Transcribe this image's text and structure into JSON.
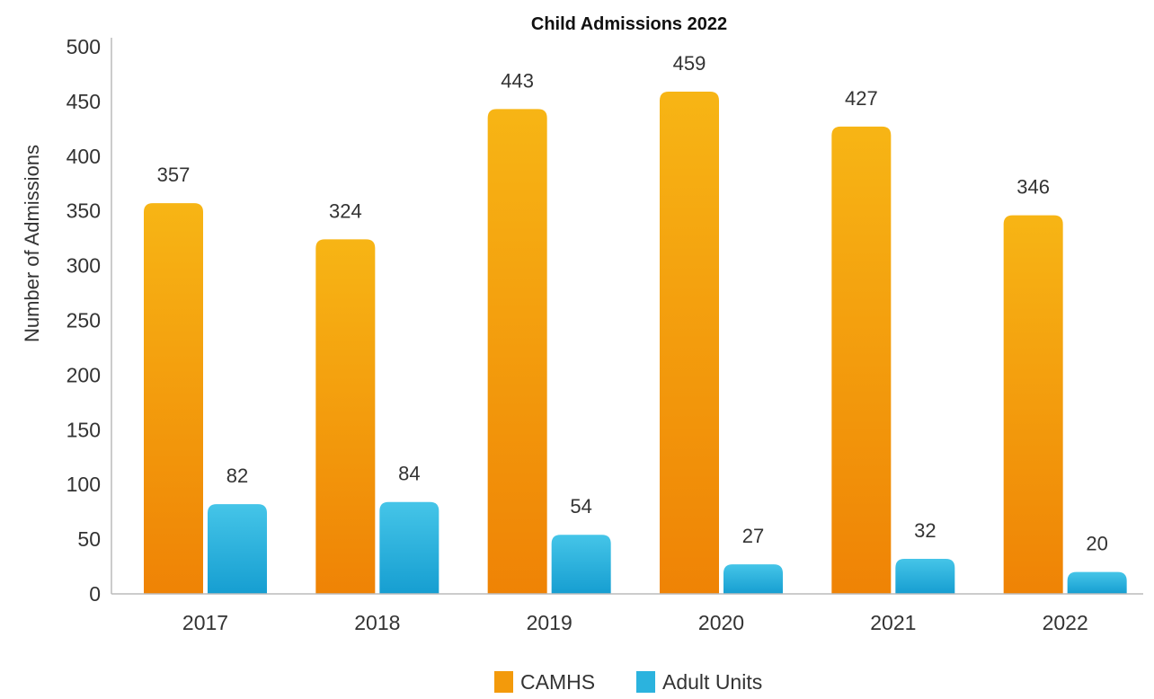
{
  "chart_data": {
    "type": "bar",
    "title": "Child Admissions 2022",
    "xlabel": "",
    "ylabel": "Number of Admissions",
    "categories": [
      "2017",
      "2018",
      "2019",
      "2020",
      "2021",
      "2022"
    ],
    "series": [
      {
        "name": "CAMHS",
        "values": [
          357,
          324,
          443,
          459,
          427,
          346
        ],
        "color": "#F39A0B",
        "color_top": "#F7B515",
        "color_bottom": "#EF8305"
      },
      {
        "name": "Adult Units",
        "values": [
          82,
          84,
          54,
          27,
          32,
          20
        ],
        "color": "#2BB3DE",
        "color_top": "#45C5E8",
        "color_bottom": "#169ED1"
      }
    ],
    "data_labels": true,
    "ylim": [
      0,
      500
    ],
    "yticks": [
      0,
      50,
      100,
      150,
      200,
      250,
      300,
      350,
      400,
      450,
      500
    ],
    "grid": false,
    "legend_position": "bottom"
  }
}
